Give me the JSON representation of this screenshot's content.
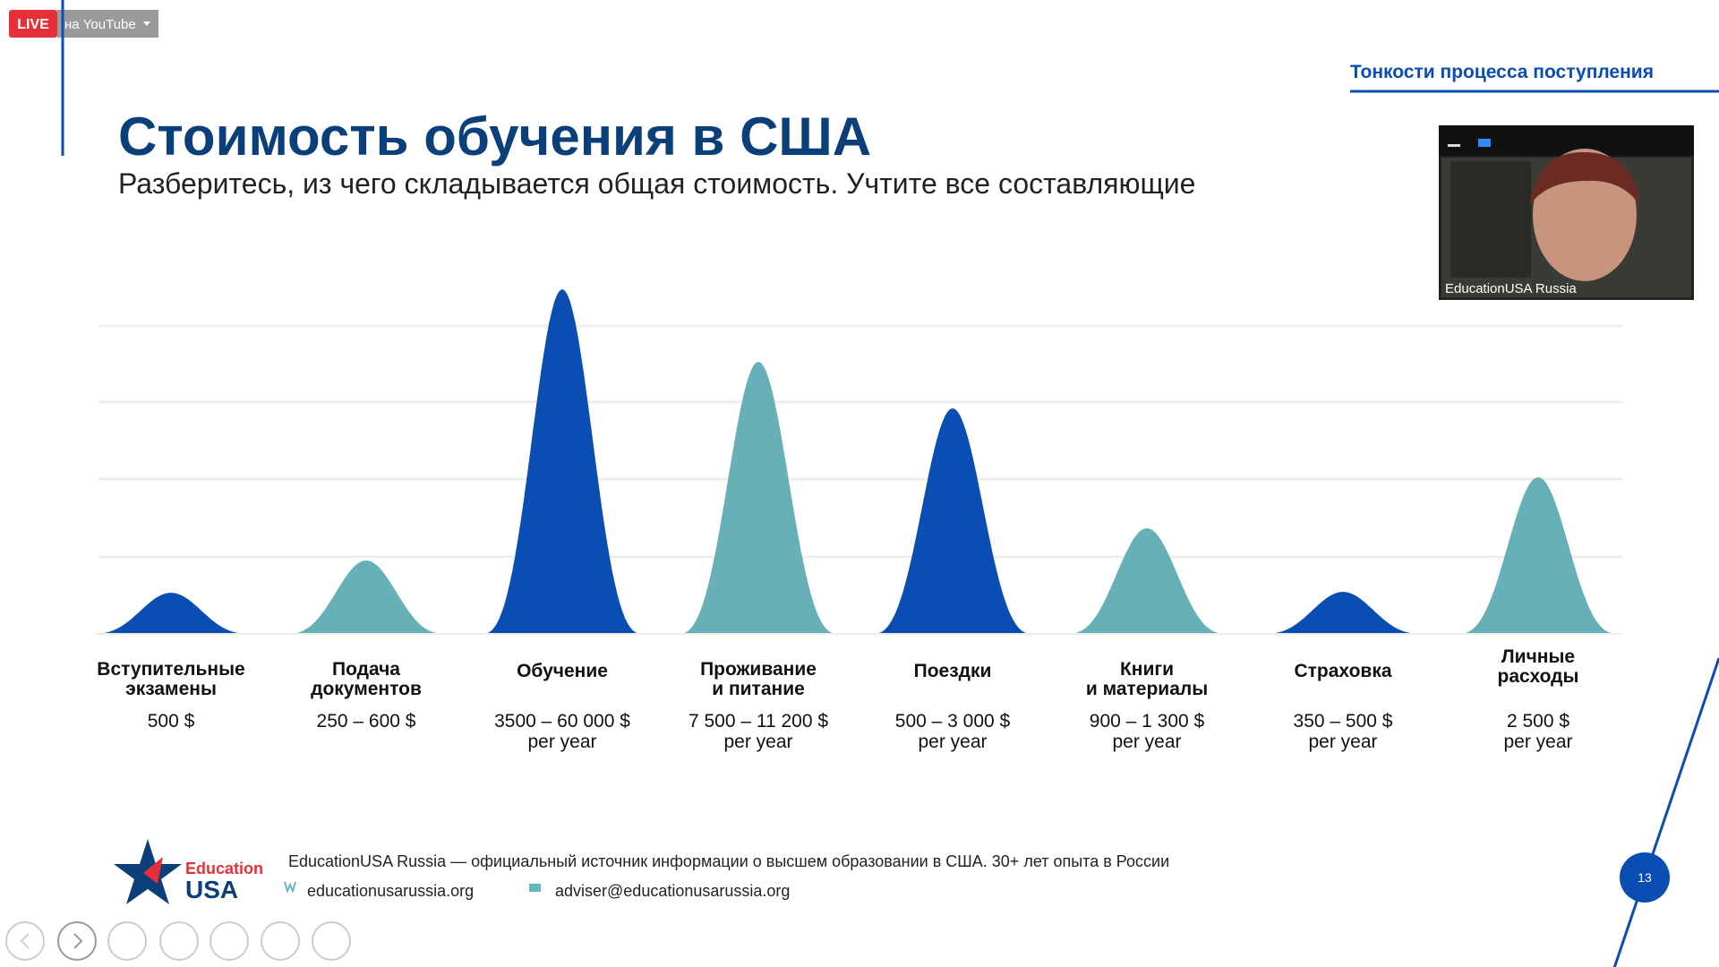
{
  "stream_badge": {
    "live": "LIVE",
    "platform": "на YouTube"
  },
  "header": {
    "section": "Тонкости процесса поступления",
    "title": "Стоимость обучения в США",
    "subtitle": "Разберитесь, из чего складывается общая стоимость. Учтите все составляющие"
  },
  "video": {
    "caption": "EducationUSA Russia"
  },
  "items": [
    {
      "name": [
        "Вступительные",
        "экзамены"
      ],
      "cost": [
        "500 $"
      ]
    },
    {
      "name": [
        "Подача",
        "документов"
      ],
      "cost": [
        "250 – 600 $"
      ]
    },
    {
      "name": [
        "Обучение"
      ],
      "cost": [
        "3500 – 60 000 $",
        "per year"
      ]
    },
    {
      "name": [
        "Проживание",
        "и питание"
      ],
      "cost": [
        "7 500 – 11 200 $",
        "per year"
      ]
    },
    {
      "name": [
        "Поездки"
      ],
      "cost": [
        "500 – 3 000 $",
        "per year"
      ]
    },
    {
      "name": [
        "Книги",
        "и материалы"
      ],
      "cost": [
        "900 – 1 300 $",
        "per year"
      ]
    },
    {
      "name": [
        "Страховка"
      ],
      "cost": [
        "350 – 500 $",
        "per year"
      ]
    },
    {
      "name": [
        "Личные",
        "расходы"
      ],
      "cost": [
        "2 500 $",
        "per year"
      ]
    }
  ],
  "footer": {
    "logo_top": "Education",
    "logo_bottom": "USA",
    "description": "EducationUSA Russia — официальный источник информации о высшем образовании в США. 30+ лет опыта в России",
    "website": "educationusarussia.org",
    "email": "adviser@educationusarussia.org"
  },
  "page_number": 13
}
